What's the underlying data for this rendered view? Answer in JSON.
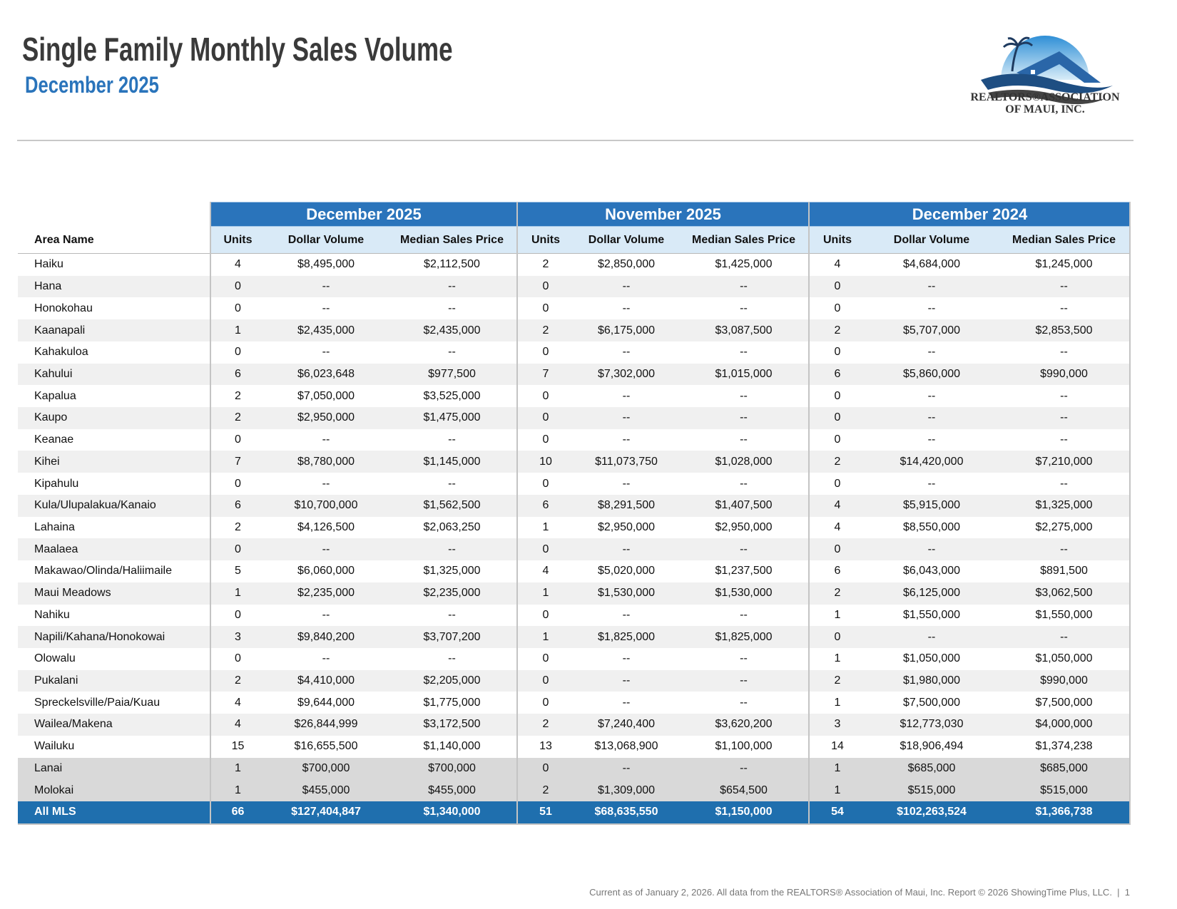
{
  "header": {
    "title": "Single Family Monthly Sales Volume",
    "subtitle": "December 2025"
  },
  "logo": {
    "line1": "REALTORS®ASSOCIATION",
    "line2": "OF MAUI, INC."
  },
  "table": {
    "area_header": "Area Name",
    "groups": [
      {
        "name": "December 2025",
        "columns": [
          "Units",
          "Dollar Volume",
          "Median Sales Price"
        ]
      },
      {
        "name": "November 2025",
        "columns": [
          "Units",
          "Dollar Volume",
          "Median Sales Price"
        ]
      },
      {
        "name": "December 2024",
        "columns": [
          "Units",
          "Dollar Volume",
          "Median Sales Price"
        ]
      }
    ],
    "rows": [
      [
        "Haiku",
        "4",
        "$8,495,000",
        "$2,112,500",
        "2",
        "$2,850,000",
        "$1,425,000",
        "4",
        "$4,684,000",
        "$1,245,000"
      ],
      [
        "Hana",
        "0",
        "--",
        "--",
        "0",
        "--",
        "--",
        "0",
        "--",
        "--"
      ],
      [
        "Honokohau",
        "0",
        "--",
        "--",
        "0",
        "--",
        "--",
        "0",
        "--",
        "--"
      ],
      [
        "Kaanapali",
        "1",
        "$2,435,000",
        "$2,435,000",
        "2",
        "$6,175,000",
        "$3,087,500",
        "2",
        "$5,707,000",
        "$2,853,500"
      ],
      [
        "Kahakuloa",
        "0",
        "--",
        "--",
        "0",
        "--",
        "--",
        "0",
        "--",
        "--"
      ],
      [
        "Kahului",
        "6",
        "$6,023,648",
        "$977,500",
        "7",
        "$7,302,000",
        "$1,015,000",
        "6",
        "$5,860,000",
        "$990,000"
      ],
      [
        "Kapalua",
        "2",
        "$7,050,000",
        "$3,525,000",
        "0",
        "--",
        "--",
        "0",
        "--",
        "--"
      ],
      [
        "Kaupo",
        "2",
        "$2,950,000",
        "$1,475,000",
        "0",
        "--",
        "--",
        "0",
        "--",
        "--"
      ],
      [
        "Keanae",
        "0",
        "--",
        "--",
        "0",
        "--",
        "--",
        "0",
        "--",
        "--"
      ],
      [
        "Kihei",
        "7",
        "$8,780,000",
        "$1,145,000",
        "10",
        "$11,073,750",
        "$1,028,000",
        "2",
        "$14,420,000",
        "$7,210,000"
      ],
      [
        "Kipahulu",
        "0",
        "--",
        "--",
        "0",
        "--",
        "--",
        "0",
        "--",
        "--"
      ],
      [
        "Kula/Ulupalakua/Kanaio",
        "6",
        "$10,700,000",
        "$1,562,500",
        "6",
        "$8,291,500",
        "$1,407,500",
        "4",
        "$5,915,000",
        "$1,325,000"
      ],
      [
        "Lahaina",
        "2",
        "$4,126,500",
        "$2,063,250",
        "1",
        "$2,950,000",
        "$2,950,000",
        "4",
        "$8,550,000",
        "$2,275,000"
      ],
      [
        "Maalaea",
        "0",
        "--",
        "--",
        "0",
        "--",
        "--",
        "0",
        "--",
        "--"
      ],
      [
        "Makawao/Olinda/Haliimaile",
        "5",
        "$6,060,000",
        "$1,325,000",
        "4",
        "$5,020,000",
        "$1,237,500",
        "6",
        "$6,043,000",
        "$891,500"
      ],
      [
        "Maui Meadows",
        "1",
        "$2,235,000",
        "$2,235,000",
        "1",
        "$1,530,000",
        "$1,530,000",
        "2",
        "$6,125,000",
        "$3,062,500"
      ],
      [
        "Nahiku",
        "0",
        "--",
        "--",
        "0",
        "--",
        "--",
        "1",
        "$1,550,000",
        "$1,550,000"
      ],
      [
        "Napili/Kahana/Honokowai",
        "3",
        "$9,840,200",
        "$3,707,200",
        "1",
        "$1,825,000",
        "$1,825,000",
        "0",
        "--",
        "--"
      ],
      [
        "Olowalu",
        "0",
        "--",
        "--",
        "0",
        "--",
        "--",
        "1",
        "$1,050,000",
        "$1,050,000"
      ],
      [
        "Pukalani",
        "2",
        "$4,410,000",
        "$2,205,000",
        "0",
        "--",
        "--",
        "2",
        "$1,980,000",
        "$990,000"
      ],
      [
        "Spreckelsville/Paia/Kuau",
        "4",
        "$9,644,000",
        "$1,775,000",
        "0",
        "--",
        "--",
        "1",
        "$7,500,000",
        "$7,500,000"
      ],
      [
        "Wailea/Makena",
        "4",
        "$26,844,999",
        "$3,172,500",
        "2",
        "$7,240,400",
        "$3,620,200",
        "3",
        "$12,773,030",
        "$4,000,000"
      ],
      [
        "Wailuku",
        "15",
        "$16,655,500",
        "$1,140,000",
        "13",
        "$13,068,900",
        "$1,100,000",
        "14",
        "$18,906,494",
        "$1,374,238"
      ]
    ],
    "island_rows": [
      [
        "Lanai",
        "1",
        "$700,000",
        "$700,000",
        "0",
        "--",
        "--",
        "1",
        "$685,000",
        "$685,000"
      ],
      [
        "Molokai",
        "1",
        "$455,000",
        "$455,000",
        "2",
        "$1,309,000",
        "$654,500",
        "1",
        "$515,000",
        "$515,000"
      ]
    ],
    "total_row": [
      "All MLS",
      "66",
      "$127,404,847",
      "$1,340,000",
      "51",
      "$68,635,550",
      "$1,150,000",
      "54",
      "$102,263,524",
      "$1,366,738"
    ]
  },
  "footer": {
    "text": "Current as of January 2, 2026. All data from the REALTORS® Association of Maui, Inc. Report © 2026 ShowingTime Plus, LLC.",
    "page": "1"
  }
}
